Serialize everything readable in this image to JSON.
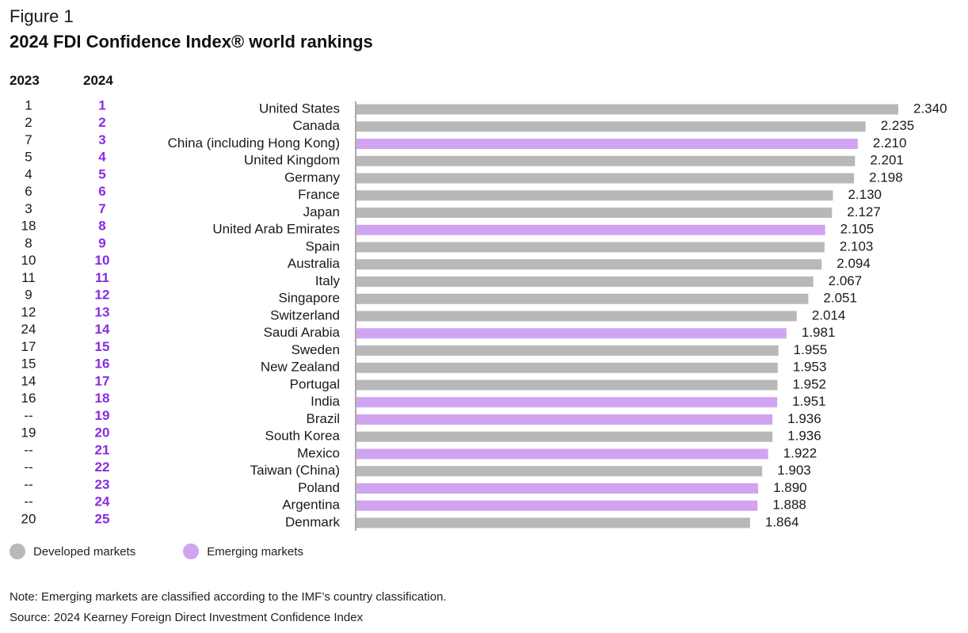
{
  "figure_label": "Figure 1",
  "title": "2024 FDI Confidence Index® world rankings",
  "col_2023": "2023",
  "col_2024": "2024",
  "colors": {
    "developed": "#b8b8b8",
    "emerging": "#d0a4f0",
    "rank2024": "#8a2be2"
  },
  "legend": {
    "developed": "Developed markets",
    "emerging": "Emerging markets"
  },
  "note": "Note: Emerging markets are classified according to the IMF’s country classification.",
  "source": "Source: 2024 Kearney Foreign Direct Investment Confidence Index",
  "chart_data": {
    "type": "bar",
    "orientation": "horizontal",
    "title": "2024 FDI Confidence Index® world rankings",
    "categories": [
      "United States",
      "Canada",
      "China (including Hong Kong)",
      "United Kingdom",
      "Germany",
      "France",
      "Japan",
      "United Arab Emirates",
      "Spain",
      "Australia",
      "Italy",
      "Singapore",
      "Switzerland",
      "Saudi Arabia",
      "Sweden",
      "New Zealand",
      "Portugal",
      "India",
      "Brazil",
      "South Korea",
      "Mexico",
      "Taiwan (China)",
      "Poland",
      "Argentina",
      "Denmark"
    ],
    "values": [
      2.34,
      2.235,
      2.21,
      2.201,
      2.198,
      2.13,
      2.127,
      2.105,
      2.103,
      2.094,
      2.067,
      2.051,
      2.014,
      1.981,
      1.955,
      1.953,
      1.952,
      1.951,
      1.936,
      1.936,
      1.922,
      1.903,
      1.89,
      1.888,
      1.864
    ],
    "value_labels": [
      "2.340",
      "2.235",
      "2.210",
      "2.201",
      "2.198",
      "2.130",
      "2.127",
      "2.105",
      "2.103",
      "2.094",
      "2.067",
      "2.051",
      "2.014",
      "1.981",
      "1.955",
      "1.953",
      "1.952",
      "1.951",
      "1.936",
      "1.936",
      "1.922",
      "1.903",
      "1.890",
      "1.888",
      "1.864"
    ],
    "market": [
      "developed",
      "developed",
      "emerging",
      "developed",
      "developed",
      "developed",
      "developed",
      "emerging",
      "developed",
      "developed",
      "developed",
      "developed",
      "developed",
      "emerging",
      "developed",
      "developed",
      "developed",
      "emerging",
      "emerging",
      "developed",
      "emerging",
      "developed",
      "emerging",
      "emerging",
      "developed"
    ],
    "rank_2023": [
      "1",
      "2",
      "7",
      "5",
      "4",
      "6",
      "3",
      "18",
      "8",
      "10",
      "11",
      "9",
      "12",
      "24",
      "17",
      "15",
      "14",
      "16",
      "--",
      "19",
      "--",
      "--",
      "--",
      "--",
      "20"
    ],
    "rank_2024": [
      "1",
      "2",
      "3",
      "4",
      "5",
      "6",
      "7",
      "8",
      "9",
      "10",
      "11",
      "12",
      "13",
      "14",
      "15",
      "16",
      "17",
      "18",
      "19",
      "20",
      "21",
      "22",
      "23",
      "24",
      "25"
    ],
    "xlim": [
      0.6,
      2.34
    ],
    "legend_entries": [
      "Developed markets",
      "Emerging markets"
    ],
    "legend_position": "bottom-left",
    "grid": false
  }
}
